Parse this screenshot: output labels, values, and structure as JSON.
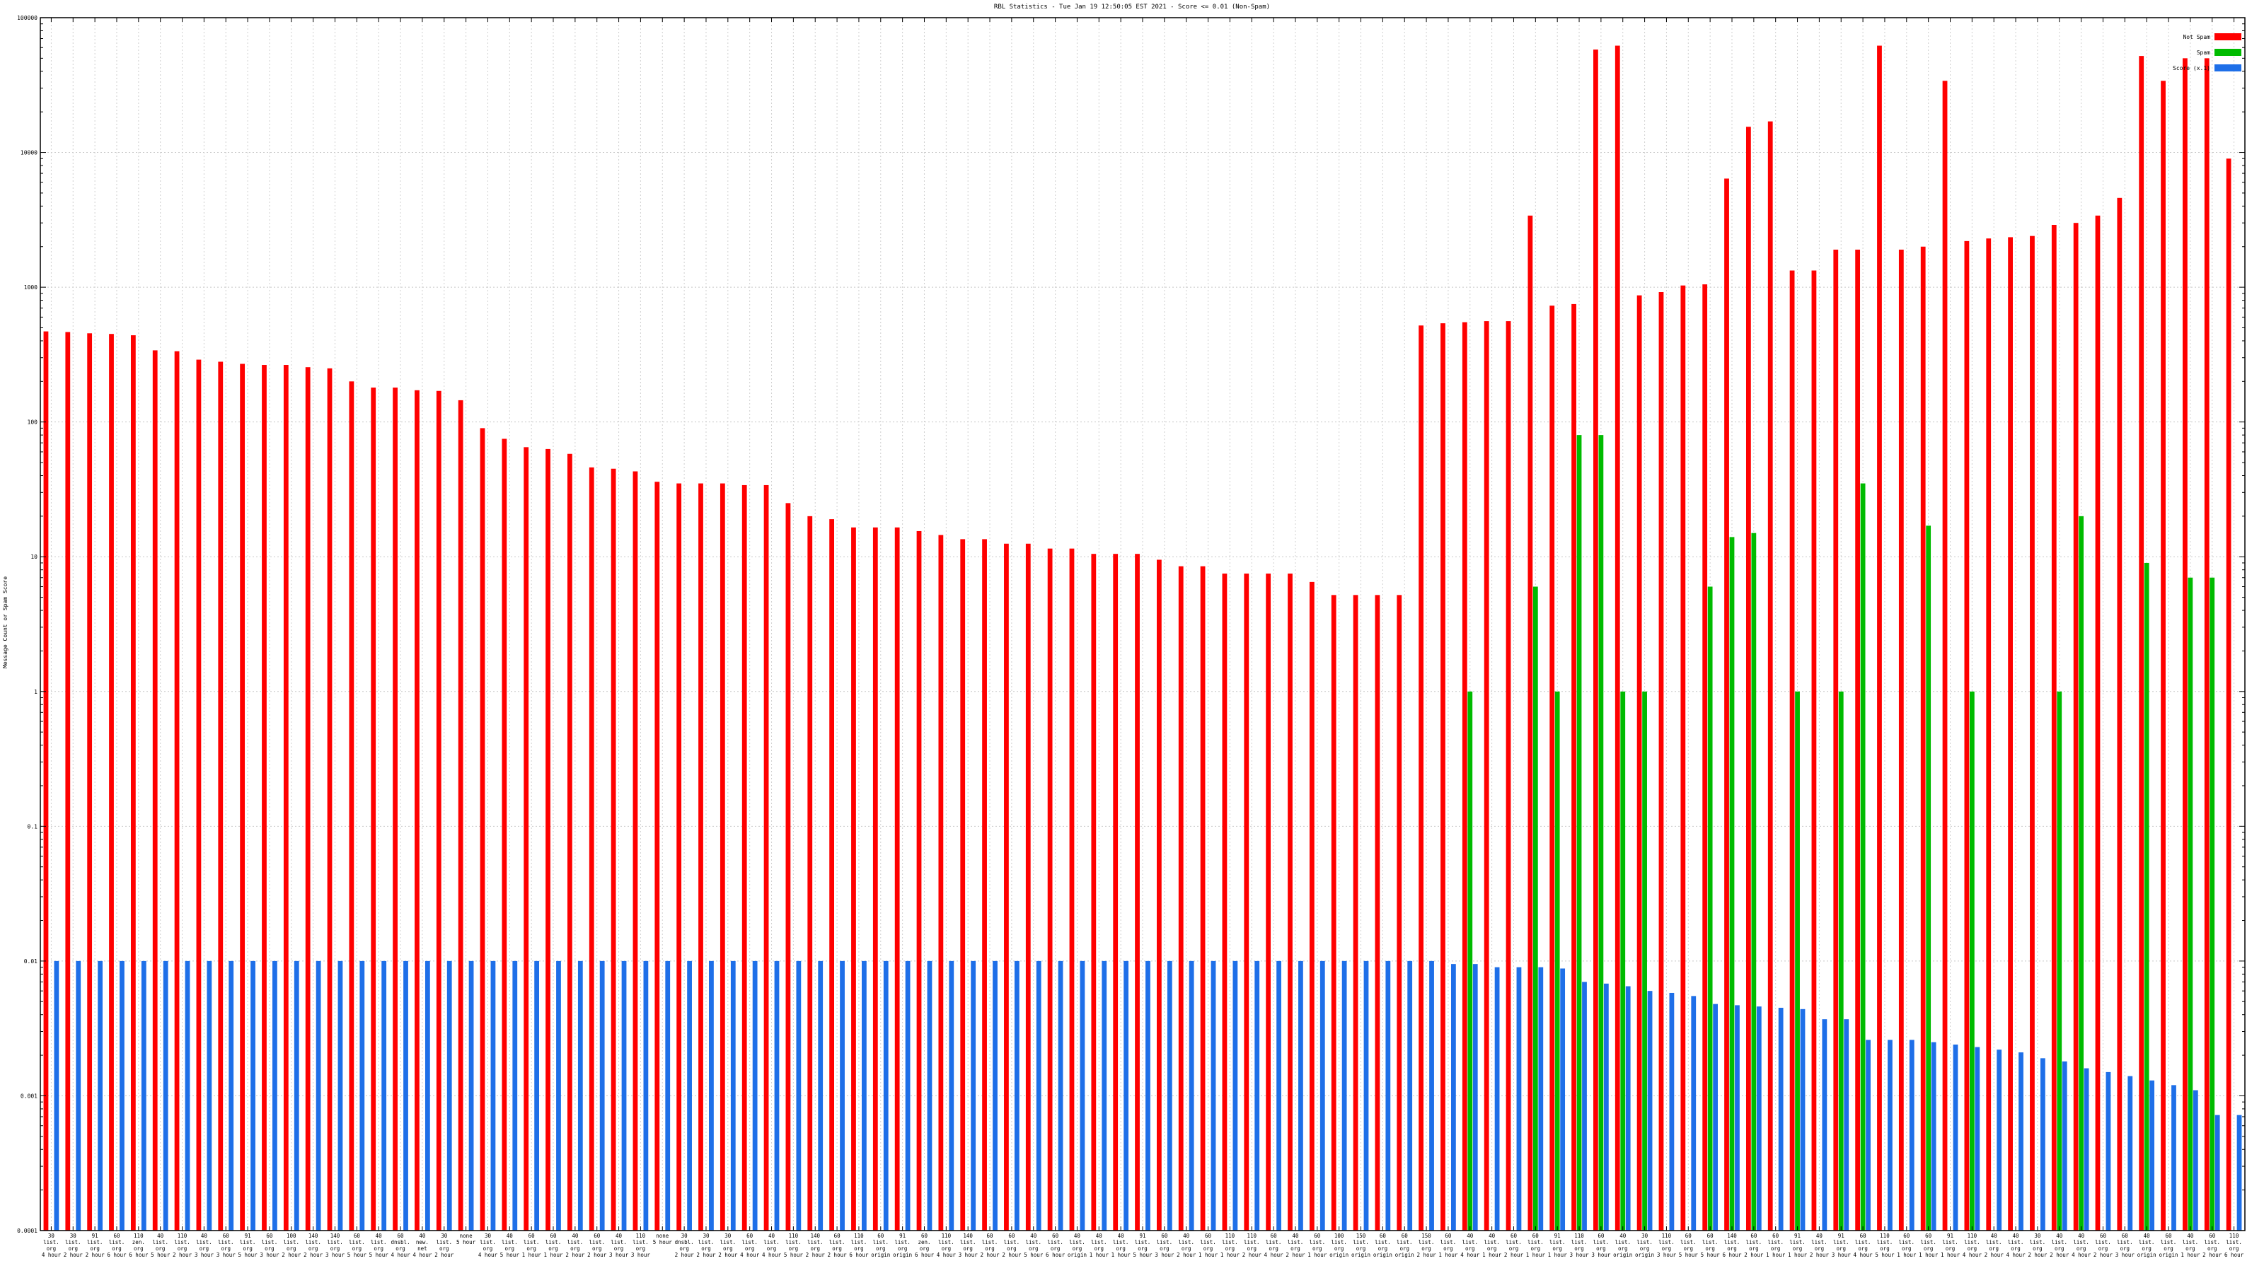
{
  "chart_data": {
    "type": "bar",
    "title": "RBL Statistics - Tue Jan 19 12:50:05 EST 2021 - Score <= 0.01 (Non-Spam)",
    "ylabel": "Message Count or Spam Score",
    "xlabel": "",
    "yscale": "log",
    "ylim": [
      0.0001,
      100000
    ],
    "ytick_labels": [
      "0.0001",
      "0.001",
      "0.01",
      "0.1",
      "1",
      "10",
      "100",
      "1000",
      "10000",
      "100000"
    ],
    "grid": true,
    "legend_position": "top-right",
    "series": [
      {
        "name": "Not Spam",
        "color": "#ff0000",
        "values": [
          470,
          465,
          455,
          450,
          440,
          340,
          335,
          290,
          280,
          270,
          265,
          265,
          255,
          250,
          200,
          180,
          180,
          172,
          170,
          145,
          90,
          75,
          65,
          63,
          58,
          46,
          45,
          43,
          36,
          35,
          35,
          35,
          34,
          34,
          25,
          20,
          19,
          16.5,
          16.5,
          16.5,
          15.5,
          14.5,
          13.5,
          13.5,
          12.5,
          12.5,
          11.5,
          11.5,
          10.5,
          10.5,
          10.5,
          9.5,
          8.5,
          8.5,
          7.5,
          7.5,
          7.5,
          7.5,
          6.5,
          5.2,
          5.2,
          5.2,
          5.2,
          520,
          540,
          550,
          560,
          560,
          3400,
          730,
          750,
          58000,
          62000,
          870,
          920,
          1030,
          1050,
          6400,
          15500,
          17000,
          1330,
          1330,
          1900,
          1900,
          62000,
          1900,
          2000,
          34000,
          2200,
          2300,
          2350,
          2400,
          2900,
          3000,
          3400,
          4600,
          52000,
          34000,
          50000,
          50000,
          9000
        ],
        "ticks": [
          "30\nlist.\norg\n4 hour",
          "30\nlist.\norg\n2 hour",
          "91\nlist.\norg\n2 hour",
          "60\nlist.\norg\n6 hour",
          "110\nzen.\norg\n6 hour",
          "40\nlist.\norg\n5 hour",
          "110\nlist.\norg\n2 hour",
          "40\nlist.\norg\n3 hour",
          "60\nlist.\norg\n3 hour",
          "91\nlist.\norg\n5 hour",
          "60\nlist.\norg\n3 hour",
          "100\nlist.\norg\n2 hour",
          "140\nlist.\norg\n2 hour",
          "140\nlist.\norg\n3 hour",
          "60\nlist.\norg\n5 hour",
          "40\nlist.\norg\n5 hour",
          "60\ndnsbl.\norg\n4 hour",
          "40\nnew.\nnet\n4 hour",
          "30\nlist.\norg\n2 hour",
          "none\n5 hour",
          "30\nlist.\norg\n4 hour",
          "40\nlist.\norg\n5 hour",
          "60\nlist.\norg\n1 hour",
          "60\nlist.\norg\n1 hour",
          "40\nlist.\norg\n2 hour",
          "60\nlist.\norg\n2 hour",
          "40\nlist.\norg\n3 hour",
          "110\nlist.\norg\n3 hour",
          "none\n5 hour",
          "30\ndnsbl.\norg\n2 hour",
          "30\nlist.\norg\n2 hour",
          "30\nlist.\norg\n2 hour",
          "60\nlist.\norg\n4 hour",
          "40\nlist.\norg\n4 hour",
          "110\nlist.\norg\n5 hour",
          "140\nlist.\norg\n2 hour",
          "60\nlist.\norg\n2 hour",
          "110\nlist.\norg\n6 hour",
          "60\nlist.\norg\norigin",
          "91\nlist.\norg\norigin",
          "60\nzen.\norg\n6 hour",
          "110\nlist.\norg\n4 hour",
          "140\nlist.\norg\n3 hour",
          "60\nlist.\norg\n2 hour",
          "60\nlist.\norg\n2 hour",
          "40\nlist.\norg\n5 hour",
          "60\nlist.\norg\n6 hour",
          "40\nlist.\norg\norigin",
          "40\nlist.\norg\n1 hour",
          "40\nlist.\norg\n1 hour",
          "91\nlist.\norg\n5 hour",
          "60\nlist.\norg\n3 hour",
          "40\nlist.\norg\n2 hour",
          "60\nlist.\norg\n1 hour",
          "110\nlist.\norg\n1 hour",
          "110\nlist.\norg\n2 hour",
          "60\nlist.\norg\n4 hour",
          "40\nlist.\norg\n2 hour",
          "60\nlist.\norg\n1 hour",
          "100\nlist.\norg\norigin",
          "150\nlist.\norg\norigin",
          "60\nlist.\norg\norigin",
          "60\nlist.\norg\norigin",
          "150\nlist.\norg\n2 hour",
          "60\nlist.\norg\n1 hour",
          "40\nlist.\norg\n4 hour",
          "40\nlist.\norg\n1 hour",
          "60\nlist.\norg\n2 hour",
          "60\nlist.\norg\n1 hour",
          "91\nlist.\norg\n1 hour",
          "110\nlist.\norg\n3 hour",
          "60\nlist.\norg\n3 hour",
          "40\nlist.\norg\norigin",
          "30\nlist.\norg\norigin",
          "110\nlist.\norg\n3 hour",
          "60\nlist.\norg\n5 hour",
          "60\nlist.\norg\n5 hour",
          "140\nlist.\norg\n6 hour",
          "60\nlist.\norg\n2 hour",
          "60\nlist.\norg\n1 hour",
          "91\nlist.\norg\n1 hour",
          "40\nlist.\norg\n2 hour",
          "91\nlist.\norg\n3 hour",
          "60\nlist.\norg\n4 hour",
          "110\nlist.\norg\n5 hour",
          "60\nlist.\norg\n1 hour",
          "60\nlist.\norg\n1 hour",
          "91\nlist.\norg\n1 hour",
          "110\nlist.\norg\n4 hour",
          "40\nlist.\norg\n2 hour",
          "40\nlist.\norg\n4 hour",
          "30\nlist.\norg\n2 hour",
          "40\nlist.\norg\n2 hour",
          "40\nlist.\norg\n4 hour",
          "60\nlist.\norg\n2 hour",
          "60\nlist.\norg\n3 hour",
          "40\nlist.\norg\norigin",
          "60\nlist.\norg\norigin",
          "40\nlist.\norg\n1 hour",
          "60\nlist.\norg\n2 hour",
          "110\nlist.\norg\n6 hour",
          "60\nlist.\norg\n1 hour"
        ]
      },
      {
        "name": "Spam",
        "color": "#00bb00",
        "values": [
          null,
          null,
          null,
          null,
          null,
          null,
          null,
          null,
          null,
          null,
          null,
          null,
          null,
          null,
          null,
          null,
          null,
          null,
          null,
          null,
          null,
          null,
          null,
          null,
          null,
          null,
          null,
          null,
          null,
          null,
          null,
          null,
          null,
          null,
          null,
          null,
          null,
          null,
          null,
          null,
          null,
          null,
          null,
          null,
          null,
          null,
          null,
          null,
          null,
          null,
          null,
          null,
          null,
          null,
          null,
          null,
          null,
          null,
          null,
          null,
          null,
          null,
          null,
          null,
          null,
          1,
          null,
          null,
          6,
          1,
          80,
          80,
          1,
          1,
          null,
          null,
          6,
          14,
          15,
          null,
          1,
          null,
          1,
          35,
          null,
          null,
          17,
          null,
          1,
          null,
          null,
          null,
          1,
          20,
          null,
          null,
          9,
          null,
          7,
          7,
          null
        ]
      },
      {
        "name": "Score (x.1)",
        "color": "#1e6fe8",
        "values": [
          0.01,
          0.01,
          0.01,
          0.01,
          0.01,
          0.01,
          0.01,
          0.01,
          0.01,
          0.01,
          0.01,
          0.01,
          0.01,
          0.01,
          0.01,
          0.01,
          0.01,
          0.01,
          0.01,
          0.01,
          0.01,
          0.01,
          0.01,
          0.01,
          0.01,
          0.01,
          0.01,
          0.01,
          0.01,
          0.01,
          0.01,
          0.01,
          0.01,
          0.01,
          0.01,
          0.01,
          0.01,
          0.01,
          0.01,
          0.01,
          0.01,
          0.01,
          0.01,
          0.01,
          0.01,
          0.01,
          0.01,
          0.01,
          0.01,
          0.01,
          0.01,
          0.01,
          0.01,
          0.01,
          0.01,
          0.01,
          0.01,
          0.01,
          0.01,
          0.01,
          0.01,
          0.01,
          0.01,
          0.01,
          0.0095,
          0.0095,
          0.009,
          0.009,
          0.009,
          0.0088,
          0.007,
          0.0068,
          0.0065,
          0.006,
          0.0058,
          0.0055,
          0.0048,
          0.0047,
          0.0046,
          0.0045,
          0.0044,
          0.0037,
          0.0037,
          0.0026,
          0.0026,
          0.0026,
          0.0025,
          0.0024,
          0.0023,
          0.0022,
          0.0021,
          0.0019,
          0.0018,
          0.0016,
          0.0015,
          0.0014,
          0.0013,
          0.0012,
          0.0011,
          0.00072,
          0.00072,
          0.00055
        ]
      }
    ]
  }
}
